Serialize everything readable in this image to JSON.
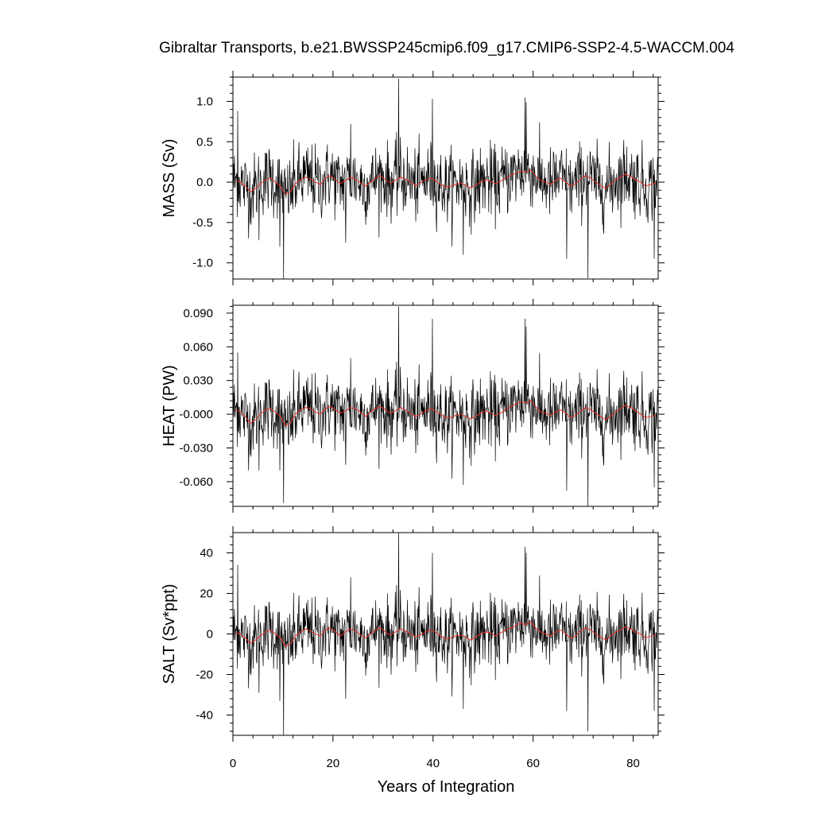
{
  "chart_data": {
    "type": "line",
    "title": "Gibraltar Transports, b.e21.BWSSP245cmip6.f09_g17.CMIP6-SSP2-4.5-WACCM.004",
    "xlabel": "Years of Integration",
    "xlim": [
      0,
      85
    ],
    "x_ticks": [
      0,
      20,
      40,
      60,
      80
    ],
    "x_tick_labels": [
      "0",
      "20",
      "40",
      "60",
      "80"
    ],
    "series_note_colors": {
      "monthly": "#000000",
      "annual": "#e8302a"
    },
    "panels": [
      {
        "name": "mass",
        "ylabel": "MASS (Sv)",
        "ylim": [
          -1.2,
          1.3
        ],
        "y_ticks": [
          -1.0,
          -0.5,
          0.0,
          0.5,
          1.0
        ],
        "y_tick_labels": [
          "-1.0",
          "-0.5",
          "0.0",
          "0.5",
          "1.0"
        ],
        "monthly_std": 0.22,
        "spikes": [
          [
            0.9,
            0.88
          ],
          [
            10.1,
            -1.2
          ],
          [
            9.3,
            -0.8
          ],
          [
            33.1,
            1.28
          ],
          [
            39.8,
            1.03
          ],
          [
            58.3,
            1.05
          ],
          [
            58.6,
            0.99
          ],
          [
            66.7,
            -0.95
          ],
          [
            70.9,
            -1.19
          ],
          [
            84.2,
            -0.95
          ],
          [
            5.2,
            -0.72
          ],
          [
            22.5,
            -0.75
          ],
          [
            46.0,
            -0.9
          ],
          [
            23.5,
            0.72
          ]
        ],
        "annual": [
          0.02,
          0.0,
          -0.05,
          -0.12,
          -0.08,
          -0.02,
          0.03,
          0.05,
          0.0,
          -0.05,
          -0.15,
          -0.12,
          -0.02,
          0.03,
          0.06,
          0.04,
          0.0,
          -0.03,
          0.05,
          0.08,
          0.03,
          -0.02,
          0.02,
          0.06,
          0.04,
          -0.01,
          -0.05,
          0.0,
          0.05,
          0.08,
          0.03,
          -0.01,
          0.02,
          0.06,
          0.04,
          0.0,
          -0.04,
          -0.01,
          0.03,
          0.05,
          0.02,
          -0.03,
          -0.06,
          -0.05,
          -0.03,
          -0.01,
          -0.04,
          -0.07,
          -0.04,
          0.0,
          0.03,
          0.01,
          -0.02,
          0.01,
          0.05,
          0.08,
          0.11,
          0.14,
          0.12,
          0.15,
          0.08,
          0.02,
          0.0,
          -0.03,
          0.02,
          0.05,
          0.0,
          -0.05,
          -0.02,
          0.04,
          0.08,
          0.05,
          0.0,
          -0.04,
          -0.08,
          -0.03,
          0.03,
          0.06,
          0.1,
          0.07,
          0.03,
          0.0,
          -0.05,
          -0.03,
          -0.01
        ]
      },
      {
        "name": "heat",
        "ylabel": "HEAT (PW)",
        "ylim": [
          -0.082,
          0.097
        ],
        "y_ticks": [
          -0.06,
          -0.03,
          0.0,
          0.03,
          0.06,
          0.09
        ],
        "y_tick_labels": [
          "-0.060",
          "-0.030",
          "-0.000",
          "0.030",
          "0.060",
          "0.090"
        ],
        "monthly_std": 0.016,
        "spikes": [
          [
            0.9,
            0.055
          ],
          [
            10.1,
            -0.079
          ],
          [
            9.3,
            -0.05
          ],
          [
            33.1,
            0.096
          ],
          [
            39.8,
            0.085
          ],
          [
            58.3,
            0.085
          ],
          [
            58.6,
            0.078
          ],
          [
            66.7,
            -0.068
          ],
          [
            70.9,
            -0.082
          ],
          [
            84.2,
            -0.065
          ],
          [
            5.2,
            -0.05
          ],
          [
            22.5,
            -0.045
          ],
          [
            46.0,
            -0.063
          ],
          [
            23.5,
            0.05
          ]
        ],
        "annual": [
          0.004,
          0.002,
          -0.002,
          -0.008,
          -0.005,
          0.0,
          0.004,
          0.005,
          0.002,
          -0.002,
          -0.01,
          -0.008,
          0.0,
          0.004,
          0.006,
          0.005,
          0.002,
          0.0,
          0.005,
          0.007,
          0.004,
          0.001,
          0.003,
          0.006,
          0.005,
          0.002,
          -0.002,
          0.002,
          0.005,
          0.007,
          0.004,
          0.001,
          0.003,
          0.006,
          0.004,
          0.001,
          -0.002,
          0.0,
          0.003,
          0.005,
          0.003,
          0.0,
          -0.003,
          -0.003,
          -0.001,
          0.0,
          -0.002,
          -0.004,
          -0.002,
          0.001,
          0.003,
          0.001,
          -0.001,
          0.001,
          0.004,
          0.007,
          0.009,
          0.011,
          0.01,
          0.012,
          0.007,
          0.002,
          0.001,
          -0.001,
          0.002,
          0.004,
          0.001,
          -0.003,
          -0.001,
          0.003,
          0.006,
          0.004,
          0.001,
          -0.002,
          -0.005,
          -0.002,
          0.002,
          0.005,
          0.008,
          0.006,
          0.003,
          0.0,
          -0.003,
          -0.002,
          -0.001
        ]
      },
      {
        "name": "salt",
        "ylabel": "SALT (Sv*ppt)",
        "ylim": [
          -50,
          50
        ],
        "y_ticks": [
          -40,
          -20,
          0,
          20,
          40
        ],
        "y_tick_labels": [
          "-40",
          "-20",
          "0",
          "20",
          "40"
        ],
        "monthly_std": 8.5,
        "spikes": [
          [
            0.9,
            34
          ],
          [
            10.1,
            -50
          ],
          [
            9.3,
            -33
          ],
          [
            33.1,
            50
          ],
          [
            39.8,
            40
          ],
          [
            58.3,
            43
          ],
          [
            58.6,
            40
          ],
          [
            66.7,
            -38
          ],
          [
            70.9,
            -48
          ],
          [
            84.2,
            -38
          ],
          [
            5.2,
            -29
          ],
          [
            22.5,
            -32
          ],
          [
            46.0,
            -37
          ],
          [
            23.5,
            28
          ]
        ],
        "annual": [
          0.5,
          0.0,
          -2.0,
          -4.5,
          -3.0,
          -1.0,
          1.0,
          2.0,
          0.0,
          -2.0,
          -6.0,
          -5.0,
          -1.0,
          1.0,
          2.5,
          1.5,
          0.0,
          -1.0,
          2.0,
          3.0,
          1.0,
          -1.0,
          1.0,
          2.5,
          1.5,
          -0.5,
          -2.0,
          0.0,
          2.0,
          3.0,
          1.0,
          -0.5,
          1.0,
          2.5,
          1.5,
          0.0,
          -1.5,
          -0.5,
          1.0,
          2.0,
          1.0,
          -1.0,
          -2.5,
          -2.0,
          -1.0,
          -0.5,
          -1.5,
          -3.0,
          -1.5,
          0.0,
          1.0,
          0.5,
          -1.0,
          0.5,
          2.0,
          3.0,
          4.0,
          5.5,
          4.5,
          6.0,
          3.0,
          1.0,
          0.0,
          -1.0,
          1.0,
          2.0,
          0.0,
          -2.0,
          -1.0,
          1.5,
          3.0,
          2.0,
          0.0,
          -1.5,
          -3.0,
          -1.0,
          1.0,
          2.0,
          3.5,
          2.5,
          1.0,
          0.0,
          -2.0,
          -1.0,
          -0.5
        ]
      }
    ]
  }
}
